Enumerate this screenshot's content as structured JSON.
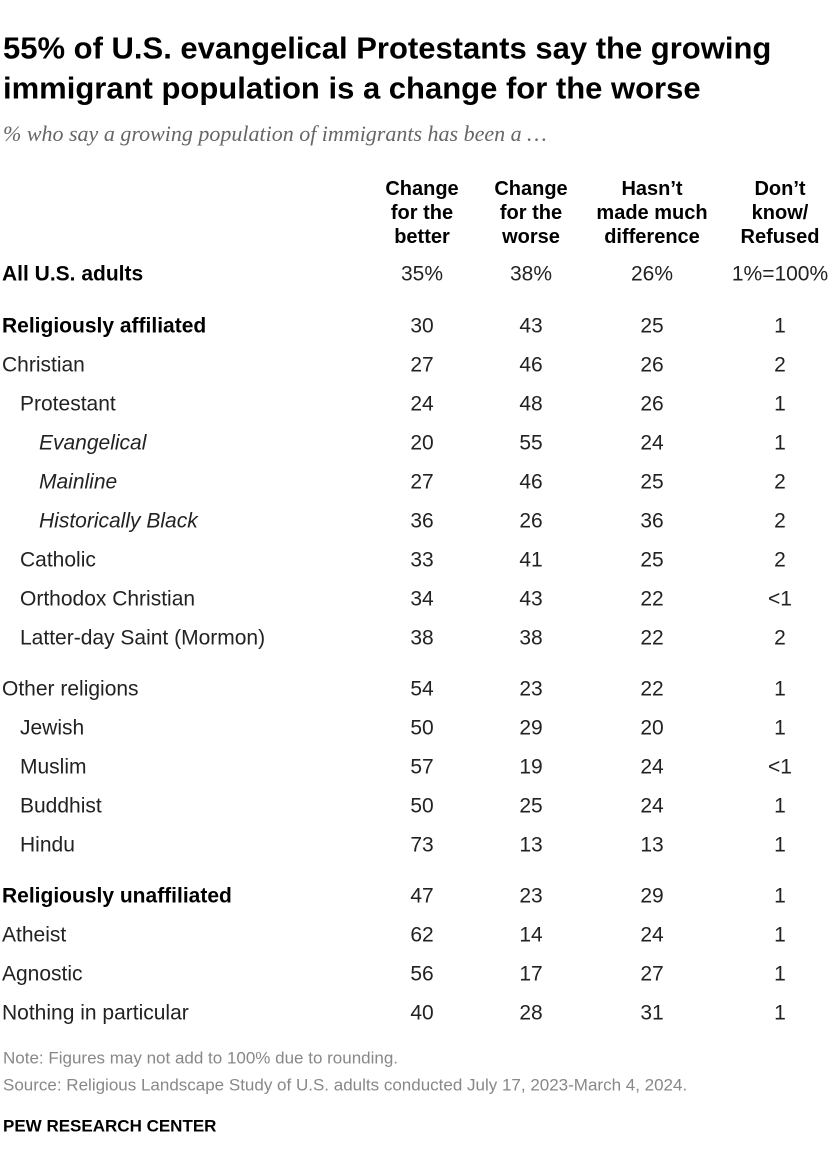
{
  "header": {
    "title_lines": [
      "55% of U.S. evangelical Protestants say the growing",
      "immigrant population is a change for the worse"
    ],
    "subtitle": "% who say a growing population of immigrants has been a …"
  },
  "table": {
    "columns": [
      [
        "Change",
        "for the",
        "better"
      ],
      [
        "Change",
        "for the",
        "worse"
      ],
      [
        "Hasn’t",
        "made much",
        "difference"
      ],
      [
        "Don’t",
        "know/",
        "Refused"
      ]
    ],
    "rows": [
      {
        "label": "All U.S. adults",
        "cells": [
          "35%",
          "38%",
          "26%",
          "1%=100%"
        ]
      },
      {
        "label": "Religiously affiliated",
        "cells": [
          "30",
          "43",
          "25",
          "1"
        ]
      },
      {
        "label": "Christian",
        "cells": [
          "27",
          "46",
          "26",
          "2"
        ]
      },
      {
        "label": "Protestant",
        "cells": [
          "24",
          "48",
          "26",
          "1"
        ]
      },
      {
        "label": "Evangelical",
        "cells": [
          "20",
          "55",
          "24",
          "1"
        ]
      },
      {
        "label": "Mainline",
        "cells": [
          "27",
          "46",
          "25",
          "2"
        ]
      },
      {
        "label": "Historically Black",
        "cells": [
          "36",
          "26",
          "36",
          "2"
        ]
      },
      {
        "label": "Catholic",
        "cells": [
          "33",
          "41",
          "25",
          "2"
        ]
      },
      {
        "label": "Orthodox Christian",
        "cells": [
          "34",
          "43",
          "22",
          "<1"
        ]
      },
      {
        "label": "Latter-day Saint (Mormon)",
        "cells": [
          "38",
          "38",
          "22",
          "2"
        ]
      },
      {
        "label": "Other religions",
        "cells": [
          "54",
          "23",
          "22",
          "1"
        ]
      },
      {
        "label": "Jewish",
        "cells": [
          "50",
          "29",
          "20",
          "1"
        ]
      },
      {
        "label": "Muslim",
        "cells": [
          "57",
          "19",
          "24",
          "<1"
        ]
      },
      {
        "label": "Buddhist",
        "cells": [
          "50",
          "25",
          "24",
          "1"
        ]
      },
      {
        "label": "Hindu",
        "cells": [
          "73",
          "13",
          "13",
          "1"
        ]
      },
      {
        "label": "Religiously unaffiliated",
        "cells": [
          "47",
          "23",
          "29",
          "1"
        ]
      },
      {
        "label": "Atheist",
        "cells": [
          "62",
          "14",
          "24",
          "1"
        ]
      },
      {
        "label": "Agnostic",
        "cells": [
          "56",
          "17",
          "27",
          "1"
        ]
      },
      {
        "label": "Nothing in particular",
        "cells": [
          "40",
          "28",
          "31",
          "1"
        ]
      }
    ]
  },
  "footer": {
    "note": "Note: Figures may not add to 100% due to rounding.",
    "source": "Source: Religious Landscape Study of U.S. adults conducted July 17, 2023-March 4, 2024.",
    "brand": "PEW RESEARCH CENTER"
  }
}
